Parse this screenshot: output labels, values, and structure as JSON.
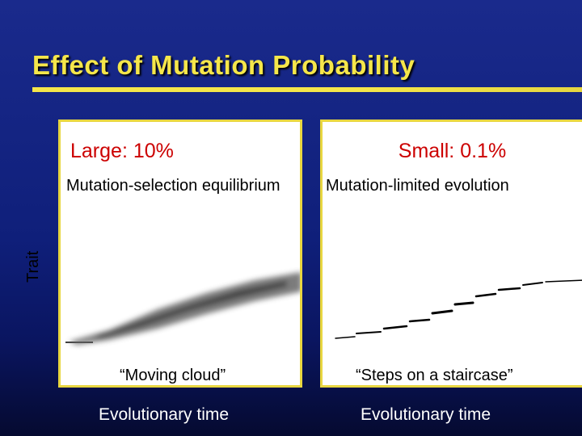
{
  "slide": {
    "title": "Effect of Mutation Probability"
  },
  "panels": [
    {
      "heading": "Large: 10%",
      "subtitle": "Mutation-selection equilibrium",
      "caption": "“Moving cloud”",
      "xlabel": "Evolutionary time"
    },
    {
      "heading": "Small: 0.1%",
      "subtitle": "Mutation-limited evolution",
      "caption": "“Steps on a staircase”",
      "xlabel": "Evolutionary time"
    }
  ],
  "ylabel": "Trait",
  "colors": {
    "title": "#f5e64a",
    "heading": "#cc0000",
    "border": "#e8d640"
  }
}
